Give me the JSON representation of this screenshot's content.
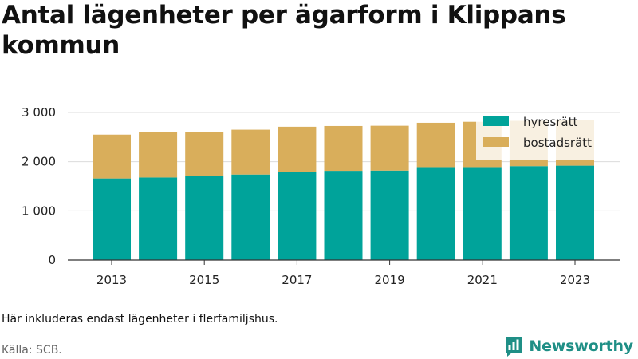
{
  "title": "Antal lägenheter per ägarform i Klippans kommun",
  "footnote": "Här inkluderas endast lägenheter i flerfamiljshus.",
  "source": "Källa: SCB.",
  "brand": "Newsworthy",
  "colors": {
    "hyresratt": "#00a39a",
    "bostadsratt": "#d9ae5b",
    "brand": "#1f8f86"
  },
  "chart_data": {
    "type": "bar",
    "stacked": true,
    "categories": [
      "2013",
      "2014",
      "2015",
      "2016",
      "2017",
      "2018",
      "2019",
      "2020",
      "2021",
      "2022",
      "2023"
    ],
    "series": [
      {
        "name": "hyresrätt",
        "color": "#00a39a",
        "values": [
          1660,
          1680,
          1710,
          1740,
          1800,
          1815,
          1820,
          1890,
          1890,
          1910,
          1920
        ]
      },
      {
        "name": "bostadsrätt",
        "color": "#d9ae5b",
        "values": [
          890,
          920,
          900,
          910,
          910,
          910,
          910,
          900,
          920,
          920,
          920
        ]
      }
    ],
    "ylim": [
      0,
      3000
    ],
    "yticks": [
      0,
      1000,
      2000,
      3000
    ],
    "ytick_labels": [
      "0",
      "1 000",
      "2 000",
      "3 000"
    ],
    "xtick_labels": [
      "2013",
      "2015",
      "2017",
      "2019",
      "2021",
      "2023"
    ],
    "grid": true,
    "legend_position": "top-right"
  }
}
